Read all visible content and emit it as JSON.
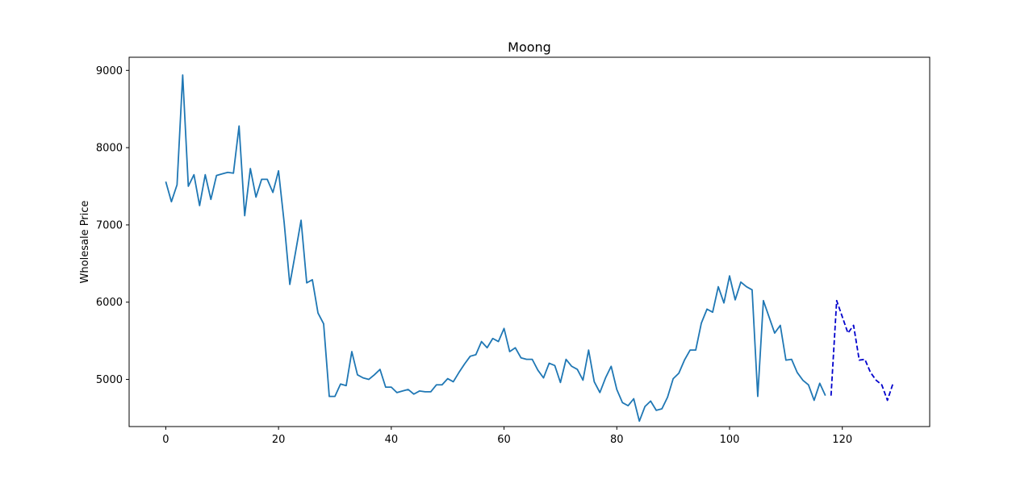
{
  "chart_data": {
    "type": "line",
    "title": "Moong",
    "xlabel": "",
    "ylabel": "Wholesale Price",
    "xlim": [
      -6.5,
      135.5
    ],
    "ylim": [
      4390,
      9170
    ],
    "grid": false,
    "x_ticks": [
      0,
      20,
      40,
      60,
      80,
      100,
      120
    ],
    "y_ticks": [
      5000,
      6000,
      7000,
      8000,
      9000
    ],
    "series": [
      {
        "color": "#1f77b4",
        "style": "solid",
        "x_start": 0,
        "values": [
          7560,
          7300,
          7520,
          8940,
          7500,
          7650,
          7250,
          7650,
          7330,
          7640,
          7660,
          7680,
          7670,
          8280,
          7120,
          7730,
          7360,
          7590,
          7590,
          7420,
          7700,
          7030,
          6230,
          6640,
          7060,
          6250,
          6290,
          5860,
          5720,
          4780,
          4780,
          4940,
          4920,
          5360,
          5060,
          5020,
          5000,
          5060,
          5130,
          4900,
          4900,
          4830,
          4850,
          4870,
          4810,
          4850,
          4840,
          4840,
          4930,
          4930,
          5010,
          4970,
          5090,
          5200,
          5300,
          5320,
          5490,
          5410,
          5530,
          5490,
          5660,
          5360,
          5410,
          5280,
          5260,
          5260,
          5120,
          5020,
          5210,
          5180,
          4960,
          5260,
          5170,
          5130,
          4990,
          5380,
          4970,
          4830,
          5020,
          5170,
          4870,
          4700,
          4660,
          4750,
          4460,
          4650,
          4720,
          4600,
          4620,
          4770,
          5010,
          5080,
          5250,
          5380,
          5380,
          5730,
          5910,
          5870,
          6200,
          5990,
          6340,
          6030,
          6260,
          6200,
          6160,
          4780,
          6020,
          5810,
          5600,
          5700,
          5250,
          5260,
          5090,
          4990,
          4930,
          4730,
          4950,
          4790
        ]
      },
      {
        "color": "#0000cc",
        "style": "dashed",
        "x_start": 118,
        "values": [
          4790,
          6020,
          5810,
          5600,
          5700,
          5250,
          5260,
          5090,
          4990,
          4930,
          4730,
          4950
        ]
      }
    ]
  }
}
